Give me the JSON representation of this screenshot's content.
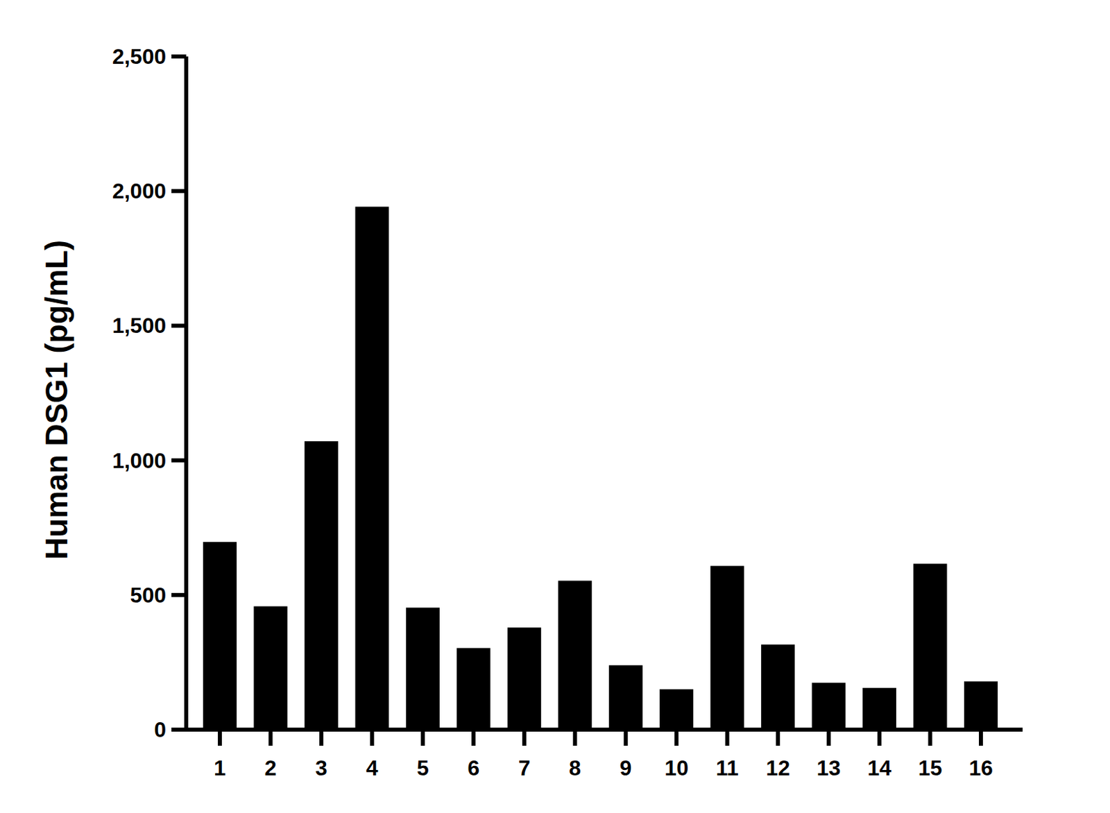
{
  "chart_data": {
    "type": "bar",
    "y_label": "Human DSG1 (pg/mL)",
    "categories": [
      "1",
      "2",
      "3",
      "4",
      "5",
      "6",
      "7",
      "8",
      "9",
      "10",
      "11",
      "12",
      "13",
      "14",
      "15",
      "16"
    ],
    "values": [
      697,
      458,
      1071,
      1942,
      453,
      303,
      379,
      553,
      239,
      150,
      608,
      316,
      174,
      155,
      616,
      179
    ],
    "color": "#000000",
    "ylim": [
      0,
      2500
    ],
    "yticks": [
      0,
      500,
      {
        "value": 1000,
        "label": "1,000"
      },
      {
        "value": 1500,
        "label": "1,500"
      },
      {
        "value": 2000,
        "label": "2,000"
      },
      {
        "value": 2500,
        "label": "2,500"
      }
    ],
    "grid": false
  }
}
